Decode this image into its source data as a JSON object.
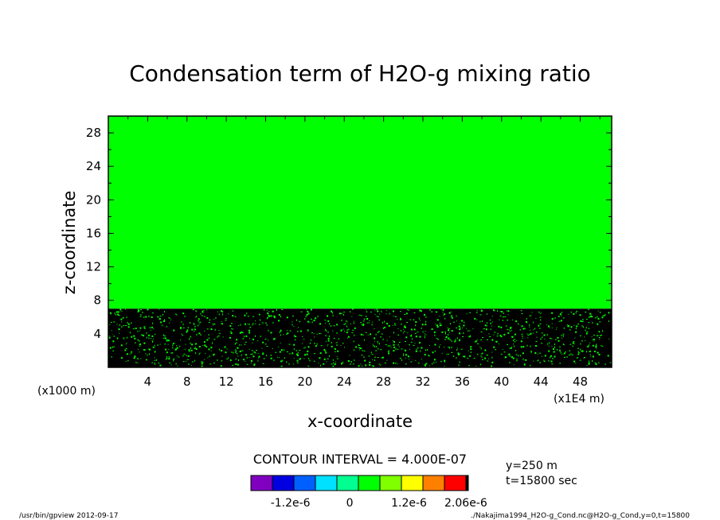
{
  "chart_data": {
    "type": "heatmap",
    "title": "Condensation term of H2O-g mixing ratio",
    "xlabel": "x-coordinate",
    "ylabel": "z-coordinate",
    "x_unit_left": "(x1000 m)",
    "x_unit_right": "(x1E4 m)",
    "xlim": [
      0,
      51.2
    ],
    "ylim": [
      0,
      30
    ],
    "xticks": [
      "4",
      "8",
      "12",
      "16",
      "20",
      "24",
      "28",
      "32",
      "36",
      "40",
      "44",
      "48"
    ],
    "xtick_values": [
      4,
      8,
      12,
      16,
      20,
      24,
      28,
      32,
      36,
      40,
      44,
      48
    ],
    "yticks": [
      "4",
      "8",
      "12",
      "16",
      "20",
      "24",
      "28"
    ],
    "ytick_values": [
      4,
      8,
      12,
      16,
      20,
      24,
      28
    ],
    "regions": [
      {
        "name": "upper",
        "z_range": [
          7,
          30
        ],
        "value_range": [
          0,
          4e-07
        ],
        "color": "#00ff00"
      },
      {
        "name": "lower",
        "z_range": [
          0,
          7
        ],
        "value_range": [
          -2e-06,
          2.06e-06
        ],
        "color": "#000000",
        "note_color": "#00ff00"
      }
    ],
    "colorbar": {
      "colors": [
        "#8000c0",
        "#0000e0",
        "#0060ff",
        "#00e0ff",
        "#00ff90",
        "#00ff00",
        "#80ff00",
        "#ffff00",
        "#ff8000",
        "#ff0000",
        "#000000"
      ],
      "tick_labels": [
        "-1.2e-6",
        "0",
        "1.2e-6",
        "2.06e-6"
      ],
      "tick_values": [
        -1.2e-06,
        0,
        1.2e-06,
        2.06e-06
      ],
      "range": [
        -2e-06,
        2.4e-06
      ]
    },
    "contour_interval": "CONTOUR INTERVAL = 4.000E-07",
    "info": [
      "y=250  m",
      "t=15800  sec"
    ]
  },
  "footer": {
    "left": "/usr/bin/gpview  2012-09-17",
    "right": "./Nakajima1994_H2O-g_Cond.nc@H2O-g_Cond,y=0,t=15800"
  }
}
